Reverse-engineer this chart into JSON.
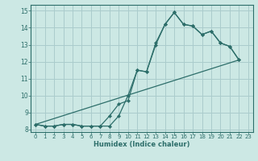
{
  "xlabel": "Humidex (Indice chaleur)",
  "bg_color": "#cce8e4",
  "grid_color": "#aacccc",
  "line_color": "#2d6e6a",
  "xlim_min": -0.5,
  "xlim_max": 23.5,
  "ylim_min": 7.85,
  "ylim_max": 15.35,
  "xticks": [
    0,
    1,
    2,
    3,
    4,
    5,
    6,
    7,
    8,
    9,
    10,
    11,
    12,
    13,
    14,
    15,
    16,
    17,
    18,
    19,
    20,
    21,
    22,
    23
  ],
  "yticks": [
    8,
    9,
    10,
    11,
    12,
    13,
    14,
    15
  ],
  "curve1_x": [
    0,
    1,
    2,
    3,
    4,
    5,
    6,
    7,
    8,
    9,
    10,
    11,
    12,
    13,
    14,
    15,
    16,
    17,
    18,
    19,
    20,
    21,
    22
  ],
  "curve1_y": [
    8.3,
    8.2,
    8.2,
    8.3,
    8.3,
    8.2,
    8.2,
    8.2,
    8.2,
    8.8,
    10.0,
    11.5,
    11.4,
    13.1,
    14.2,
    14.9,
    14.2,
    14.1,
    13.6,
    13.8,
    13.1,
    12.9,
    12.1
  ],
  "curve2_x": [
    0,
    1,
    2,
    3,
    4,
    5,
    6,
    7,
    8,
    9,
    10,
    11,
    12,
    13,
    14,
    15,
    16,
    17,
    18,
    19,
    20,
    21,
    22
  ],
  "curve2_y": [
    8.3,
    8.2,
    8.2,
    8.3,
    8.3,
    8.2,
    8.2,
    8.2,
    8.8,
    9.5,
    9.7,
    11.5,
    11.4,
    13.0,
    14.2,
    14.9,
    14.2,
    14.1,
    13.6,
    13.8,
    13.1,
    12.9,
    12.1
  ],
  "line_x": [
    0,
    22
  ],
  "line_y": [
    8.3,
    12.1
  ]
}
